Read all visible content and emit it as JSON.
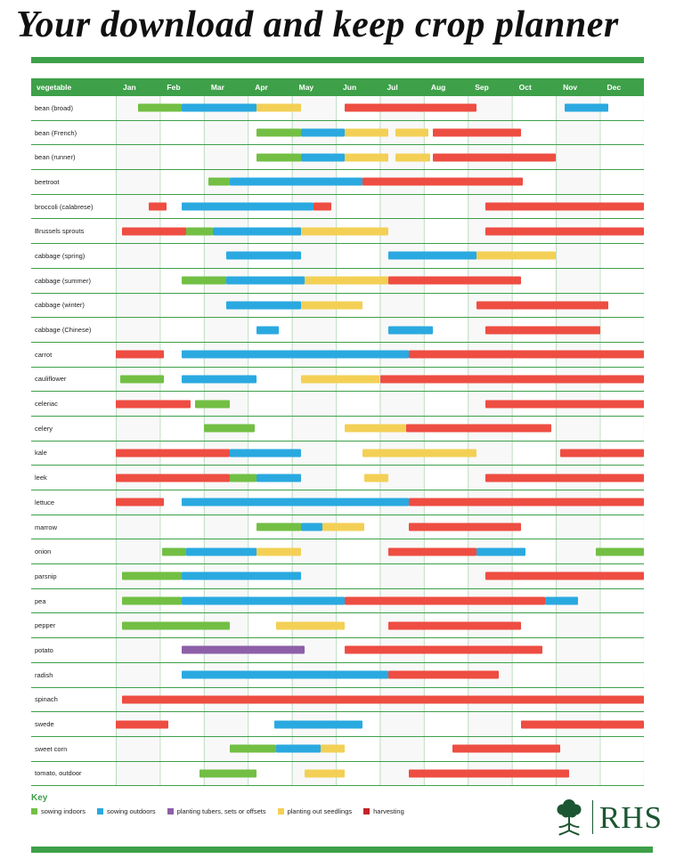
{
  "title": "Your download and keep crop planner",
  "colors": {
    "header_green": "#3ea049",
    "rule_green": "#3ea049",
    "row_line_green": "#3ea049",
    "key_text_green": "#3ea049",
    "logo_green": "#1c5632",
    "indoors": "#72bf44",
    "outdoors": "#2aa9e0",
    "tubers": "#8d5fa8",
    "seedlings": "#f3d055",
    "harvest": "#ee4d42"
  },
  "chart_data": {
    "type": "bar",
    "variant": "gantt-crop-calendar",
    "title": "Your download and keep crop planner",
    "row_header": "vegetable",
    "x": {
      "categories": [
        "Jan",
        "Feb",
        "Mar",
        "Apr",
        "May",
        "Jun",
        "Jul",
        "Aug",
        "Sep",
        "Oct",
        "Nov",
        "Dec"
      ],
      "range": [
        0,
        12
      ],
      "units": "months"
    },
    "activities": {
      "indoors": "sowing indoors",
      "outdoors": "sowing outdoors",
      "tubers": "planting tubers, sets or offsets",
      "seedlings": "planting out seedlings",
      "harvest": "harvesting"
    },
    "rows": [
      {
        "label": "bean (broad)",
        "segments": [
          [
            "indoors",
            0.5,
            1.5
          ],
          [
            "outdoors",
            1.5,
            3.2
          ],
          [
            "seedlings",
            3.2,
            4.2
          ],
          [
            "harvest",
            5.2,
            8.2
          ],
          [
            "outdoors",
            10.2,
            11.2
          ]
        ]
      },
      {
        "label": "bean (French)",
        "segments": [
          [
            "indoors",
            3.2,
            4.2
          ],
          [
            "outdoors",
            4.2,
            5.2
          ],
          [
            "seedlings",
            5.2,
            6.2
          ],
          [
            "seedlings",
            6.35,
            7.1
          ],
          [
            "harvest",
            7.2,
            9.2
          ]
        ]
      },
      {
        "label": "bean (runner)",
        "segments": [
          [
            "indoors",
            3.2,
            4.2
          ],
          [
            "outdoors",
            4.2,
            5.2
          ],
          [
            "seedlings",
            5.2,
            6.2
          ],
          [
            "seedlings",
            6.35,
            7.15
          ],
          [
            "harvest",
            7.2,
            10.0
          ]
        ]
      },
      {
        "label": "beetroot",
        "segments": [
          [
            "indoors",
            2.1,
            2.6
          ],
          [
            "outdoors",
            2.6,
            5.6
          ],
          [
            "harvest",
            5.6,
            9.25
          ]
        ]
      },
      {
        "label": "broccoli (calabrese)",
        "segments": [
          [
            "harvest",
            0.75,
            1.15
          ],
          [
            "outdoors",
            1.5,
            4.5
          ],
          [
            "harvest",
            4.5,
            4.9
          ],
          [
            "harvest",
            8.4,
            12
          ]
        ]
      },
      {
        "label": "Brussels sprouts",
        "segments": [
          [
            "harvest",
            0.15,
            1.6
          ],
          [
            "indoors",
            1.6,
            2.2
          ],
          [
            "outdoors",
            2.2,
            4.2
          ],
          [
            "seedlings",
            4.2,
            6.2
          ],
          [
            "harvest",
            8.4,
            12
          ]
        ]
      },
      {
        "label": "cabbage (spring)",
        "segments": [
          [
            "outdoors",
            2.5,
            4.2
          ],
          [
            "outdoors",
            6.2,
            8.2
          ],
          [
            "seedlings",
            8.2,
            10.0
          ]
        ]
      },
      {
        "label": "cabbage (summer)",
        "segments": [
          [
            "indoors",
            1.5,
            2.5
          ],
          [
            "outdoors",
            2.5,
            4.3
          ],
          [
            "seedlings",
            4.3,
            6.2
          ],
          [
            "harvest",
            6.2,
            9.2
          ]
        ]
      },
      {
        "label": "cabbage (winter)",
        "segments": [
          [
            "outdoors",
            2.5,
            4.2
          ],
          [
            "seedlings",
            4.2,
            5.6
          ],
          [
            "harvest",
            8.2,
            11.2
          ]
        ]
      },
      {
        "label": "cabbage (Chinese)",
        "segments": [
          [
            "outdoors",
            3.2,
            3.7
          ],
          [
            "outdoors",
            6.2,
            7.2
          ],
          [
            "harvest",
            8.4,
            11.0
          ]
        ]
      },
      {
        "label": "carrot",
        "segments": [
          [
            "harvest",
            0,
            1.1
          ],
          [
            "outdoors",
            1.5,
            6.65
          ],
          [
            "harvest",
            6.65,
            12
          ]
        ]
      },
      {
        "label": "cauliflower",
        "segments": [
          [
            "indoors",
            0.1,
            1.1
          ],
          [
            "outdoors",
            1.5,
            3.2
          ],
          [
            "seedlings",
            4.2,
            6.0
          ],
          [
            "harvest",
            6.0,
            12
          ]
        ]
      },
      {
        "label": "celeriac",
        "segments": [
          [
            "harvest",
            0,
            1.7
          ],
          [
            "indoors",
            1.8,
            2.6
          ],
          [
            "harvest",
            8.4,
            12
          ]
        ]
      },
      {
        "label": "celery",
        "segments": [
          [
            "indoors",
            2.0,
            3.15
          ],
          [
            "seedlings",
            5.2,
            6.6
          ],
          [
            "harvest",
            6.6,
            9.9
          ]
        ]
      },
      {
        "label": "kale",
        "segments": [
          [
            "harvest",
            0,
            2.6
          ],
          [
            "outdoors",
            2.6,
            4.2
          ],
          [
            "seedlings",
            5.6,
            8.2
          ],
          [
            "harvest",
            10.1,
            12
          ]
        ]
      },
      {
        "label": "leek",
        "segments": [
          [
            "harvest",
            0,
            2.6
          ],
          [
            "indoors",
            2.6,
            3.2
          ],
          [
            "outdoors",
            3.2,
            4.2
          ],
          [
            "seedlings",
            5.65,
            6.2
          ],
          [
            "harvest",
            8.4,
            12
          ]
        ]
      },
      {
        "label": "lettuce",
        "segments": [
          [
            "harvest",
            0,
            1.1
          ],
          [
            "outdoors",
            1.5,
            6.65
          ],
          [
            "harvest",
            6.65,
            12
          ]
        ]
      },
      {
        "label": "marrow",
        "segments": [
          [
            "indoors",
            3.2,
            4.2
          ],
          [
            "outdoors",
            4.2,
            4.7
          ],
          [
            "seedlings",
            4.7,
            5.65
          ],
          [
            "harvest",
            6.65,
            9.2
          ]
        ]
      },
      {
        "label": "onion",
        "segments": [
          [
            "indoors",
            1.05,
            1.6
          ],
          [
            "outdoors",
            1.6,
            3.2
          ],
          [
            "seedlings",
            3.2,
            4.2
          ],
          [
            "harvest",
            6.2,
            8.2
          ],
          [
            "outdoors",
            8.2,
            9.3
          ],
          [
            "indoors",
            10.9,
            12
          ]
        ]
      },
      {
        "label": "parsnip",
        "segments": [
          [
            "indoors",
            0.15,
            1.5
          ],
          [
            "outdoors",
            1.5,
            4.2
          ],
          [
            "harvest",
            8.4,
            12
          ]
        ]
      },
      {
        "label": "pea",
        "segments": [
          [
            "indoors",
            0.15,
            1.5
          ],
          [
            "outdoors",
            1.5,
            5.2
          ],
          [
            "harvest",
            5.2,
            9.75
          ],
          [
            "outdoors",
            9.75,
            10.5
          ]
        ]
      },
      {
        "label": "pepper",
        "segments": [
          [
            "indoors",
            0.15,
            2.6
          ],
          [
            "seedlings",
            3.65,
            5.2
          ],
          [
            "harvest",
            6.2,
            9.2
          ]
        ]
      },
      {
        "label": "potato",
        "segments": [
          [
            "tubers",
            1.5,
            4.3
          ],
          [
            "harvest",
            5.2,
            9.7
          ]
        ]
      },
      {
        "label": "radish",
        "segments": [
          [
            "outdoors",
            1.5,
            6.2
          ],
          [
            "harvest",
            6.2,
            8.7
          ]
        ]
      },
      {
        "label": "spinach",
        "segments": [
          [
            "harvest",
            0.15,
            12
          ]
        ]
      },
      {
        "label": "swede",
        "segments": [
          [
            "harvest",
            0,
            1.2
          ],
          [
            "outdoors",
            3.6,
            5.6
          ],
          [
            "harvest",
            9.2,
            12
          ]
        ]
      },
      {
        "label": "sweet corn",
        "segments": [
          [
            "indoors",
            2.6,
            3.65
          ],
          [
            "outdoors",
            3.65,
            4.65
          ],
          [
            "seedlings",
            4.65,
            5.2
          ],
          [
            "harvest",
            7.65,
            10.1
          ]
        ]
      },
      {
        "label": "tomato, outdoor",
        "segments": [
          [
            "indoors",
            1.9,
            3.2
          ],
          [
            "seedlings",
            4.3,
            5.2
          ],
          [
            "harvest",
            6.65,
            10.3
          ]
        ]
      }
    ]
  },
  "key": {
    "label": "Key",
    "items": [
      {
        "label": "sowing indoors",
        "color": "#72bf44"
      },
      {
        "label": "sowing outdoors",
        "color": "#2aa9e0"
      },
      {
        "label": "planting tubers, sets or offsets",
        "color": "#8d5fa8"
      },
      {
        "label": "planting out seedlings",
        "color": "#f3d055"
      },
      {
        "label": "harvesting",
        "color": "#c2242b"
      }
    ]
  },
  "logo": {
    "text": "RHS"
  }
}
